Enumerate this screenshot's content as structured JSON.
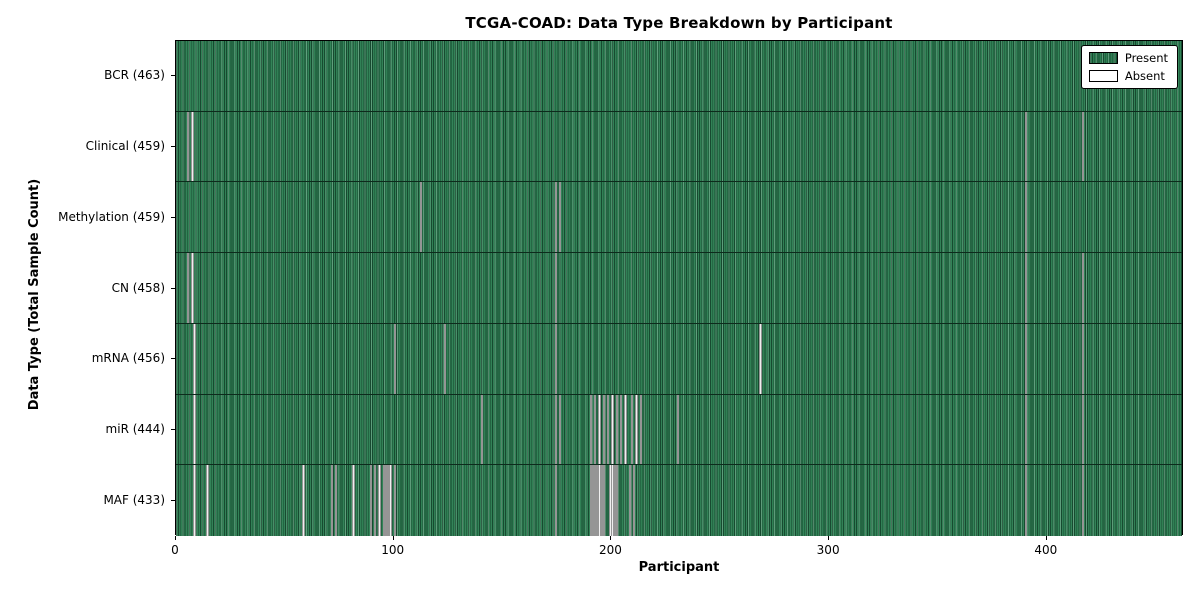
{
  "title": "TCGA-COAD: Data Type Breakdown by Participant",
  "x_axis_label": "Participant",
  "y_axis_label": "Data Type (Total Sample Count)",
  "legend": {
    "present_label": "Present",
    "absent_label": "Absent"
  },
  "colors": {
    "present_fill": "#2e7d52",
    "present_stripe_dark": "#174a30",
    "present_stripe_light": "#35875b",
    "absent_fill": "#efefef",
    "axis": "#000000",
    "background": "#ffffff"
  },
  "chart_data": {
    "type": "heatmap",
    "title": "TCGA-COAD: Data Type Breakdown by Participant",
    "xlabel": "Participant",
    "ylabel": "Data Type (Total Sample Count)",
    "x_min": 0,
    "x_max": 463,
    "x_ticks": [
      0,
      100,
      200,
      300,
      400
    ],
    "legend_entries": [
      "Present",
      "Absent"
    ],
    "legend_position": "upper right",
    "total_participants": 463,
    "rows": [
      {
        "label": "BCR (463)",
        "data_type": "BCR",
        "total_sample_count": 463,
        "absent_participants": []
      },
      {
        "label": "Clinical (459)",
        "data_type": "Clinical",
        "total_sample_count": 459,
        "absent_participants": [
          5,
          7,
          390,
          416
        ]
      },
      {
        "label": "Methylation (459)",
        "data_type": "Methylation",
        "total_sample_count": 459,
        "absent_participants": [
          112,
          174,
          176,
          390
        ]
      },
      {
        "label": "CN (458)",
        "data_type": "CN",
        "total_sample_count": 458,
        "absent_participants": [
          5,
          7,
          174,
          390,
          416
        ]
      },
      {
        "label": "mRNA (456)",
        "data_type": "mRNA",
        "total_sample_count": 456,
        "absent_participants": [
          8,
          100,
          123,
          174,
          268,
          390,
          416
        ]
      },
      {
        "label": "miR (444)",
        "data_type": "miR",
        "total_sample_count": 444,
        "absent_participants": [
          8,
          140,
          174,
          176,
          190,
          192,
          194,
          196,
          198,
          200,
          202,
          204,
          206,
          209,
          211,
          213,
          230,
          390,
          416
        ]
      },
      {
        "label": "MAF (433)",
        "data_type": "MAF",
        "total_sample_count": 433,
        "absent_participants": [
          8,
          14,
          58,
          71,
          73,
          81,
          89,
          91,
          93,
          95,
          96,
          97,
          98,
          100,
          174,
          190,
          191,
          192,
          193,
          194,
          195,
          196,
          199,
          200,
          201,
          202,
          208,
          210,
          390,
          416
        ]
      }
    ]
  }
}
